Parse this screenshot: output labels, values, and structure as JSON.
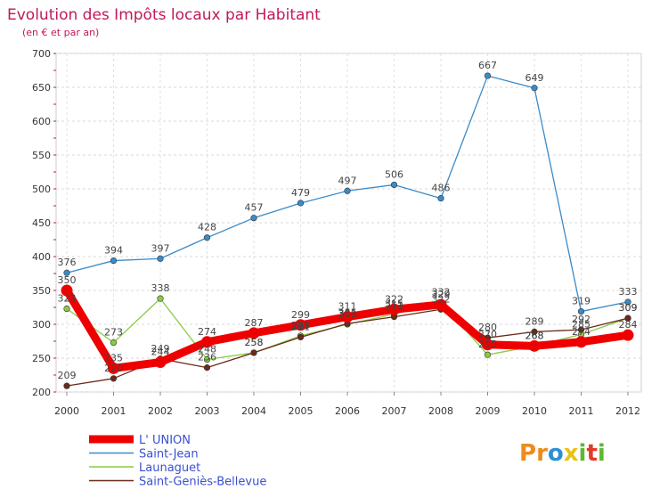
{
  "chart_data": {
    "type": "line",
    "title": "Evolution des Impôts locaux par Habitant",
    "subtitle": "(en € et par an)",
    "xlabel": "",
    "ylabel": "",
    "ylim": [
      200,
      700
    ],
    "yticks": [
      200,
      250,
      300,
      350,
      400,
      450,
      500,
      550,
      600,
      650,
      700
    ],
    "categories": [
      "2000",
      "2001",
      "2002",
      "2003",
      "2004",
      "2005",
      "2006",
      "2007",
      "2008",
      "2009",
      "2010",
      "2011",
      "2012"
    ],
    "grid": true,
    "legend": "bottom-left",
    "series": [
      {
        "name": "L' UNION",
        "color": "#ee0000",
        "values": [
          350,
          235,
          244,
          274,
          287,
          299,
          311,
          322,
          329,
          270,
          268,
          274,
          284
        ]
      },
      {
        "name": "Saint-Jean",
        "color": "#3a8bc8",
        "values": [
          376,
          394,
          397,
          428,
          457,
          479,
          497,
          506,
          486,
          667,
          649,
          319,
          333
        ]
      },
      {
        "name": "Launaguet",
        "color": "#88cc44",
        "values": [
          323,
          273,
          338,
          248,
          258,
          283,
          300,
          315,
          332,
          255,
          268,
          285,
          309
        ]
      },
      {
        "name": "Saint-Geniès-Bellevue",
        "color": "#6b2a1a",
        "values": [
          209,
          220,
          249,
          236,
          258,
          281,
          301,
          311,
          322,
          280,
          289,
          292,
          309
        ]
      }
    ],
    "data_labels": [
      {
        "series": 0,
        "index": 0,
        "text": "350"
      },
      {
        "series": 0,
        "index": 1,
        "text": "235"
      },
      {
        "series": 0,
        "index": 2,
        "text": "244"
      },
      {
        "series": 0,
        "index": 3,
        "text": "274"
      },
      {
        "series": 0,
        "index": 4,
        "text": "287"
      },
      {
        "series": 0,
        "index": 5,
        "text": "299"
      },
      {
        "series": 0,
        "index": 6,
        "text": "311"
      },
      {
        "series": 0,
        "index": 7,
        "text": "322"
      },
      {
        "series": 0,
        "index": 8,
        "text": "329"
      },
      {
        "series": 0,
        "index": 9,
        "text": "270"
      },
      {
        "series": 0,
        "index": 10,
        "text": "268"
      },
      {
        "series": 0,
        "index": 11,
        "text": "274"
      },
      {
        "series": 0,
        "index": 12,
        "text": "284"
      },
      {
        "series": 1,
        "index": 0,
        "text": "376"
      },
      {
        "series": 1,
        "index": 1,
        "text": "394"
      },
      {
        "series": 1,
        "index": 2,
        "text": "397"
      },
      {
        "series": 1,
        "index": 3,
        "text": "428"
      },
      {
        "series": 1,
        "index": 4,
        "text": "457"
      },
      {
        "series": 1,
        "index": 5,
        "text": "479"
      },
      {
        "series": 1,
        "index": 6,
        "text": "497"
      },
      {
        "series": 1,
        "index": 7,
        "text": "506"
      },
      {
        "series": 1,
        "index": 8,
        "text": "486"
      },
      {
        "series": 1,
        "index": 9,
        "text": "667"
      },
      {
        "series": 1,
        "index": 10,
        "text": "649"
      },
      {
        "series": 1,
        "index": 11,
        "text": "319"
      },
      {
        "series": 1,
        "index": 12,
        "text": "333"
      },
      {
        "series": 2,
        "index": 0,
        "text": "323"
      },
      {
        "series": 2,
        "index": 1,
        "text": "273"
      },
      {
        "series": 2,
        "index": 2,
        "text": "338"
      },
      {
        "series": 2,
        "index": 3,
        "text": "248"
      },
      {
        "series": 2,
        "index": 4,
        "text": "258"
      },
      {
        "series": 2,
        "index": 5,
        "text": "283"
      },
      {
        "series": 2,
        "index": 6,
        "text": "300"
      },
      {
        "series": 2,
        "index": 7,
        "text": "315"
      },
      {
        "series": 2,
        "index": 8,
        "text": "332"
      },
      {
        "series": 2,
        "index": 9,
        "text": "255"
      },
      {
        "series": 2,
        "index": 10,
        "text": "268"
      },
      {
        "series": 2,
        "index": 11,
        "text": "285"
      },
      {
        "series": 2,
        "index": 12,
        "text": "309"
      },
      {
        "series": 3,
        "index": 0,
        "text": "209"
      },
      {
        "series": 3,
        "index": 1,
        "text": "220"
      },
      {
        "series": 3,
        "index": 2,
        "text": "249"
      },
      {
        "series": 3,
        "index": 3,
        "text": "236"
      },
      {
        "series": 3,
        "index": 4,
        "text": "258"
      },
      {
        "series": 3,
        "index": 5,
        "text": "281"
      },
      {
        "series": 3,
        "index": 6,
        "text": "301"
      },
      {
        "series": 3,
        "index": 7,
        "text": "311"
      },
      {
        "series": 3,
        "index": 8,
        "text": "322"
      },
      {
        "series": 3,
        "index": 9,
        "text": "280"
      },
      {
        "series": 3,
        "index": 10,
        "text": "289"
      },
      {
        "series": 3,
        "index": 11,
        "text": "292"
      },
      {
        "series": 3,
        "index": 12,
        "text": "309"
      }
    ]
  },
  "logo": {
    "text": "Proxiti",
    "letters": [
      "P",
      "r",
      "o",
      "x",
      "i",
      "t",
      "i"
    ],
    "colors": [
      "#f08a1c",
      "#f08a1c",
      "#2a8fd6",
      "#e8c21a",
      "#5fb830",
      "#e23a2a",
      "#5fb830"
    ]
  }
}
